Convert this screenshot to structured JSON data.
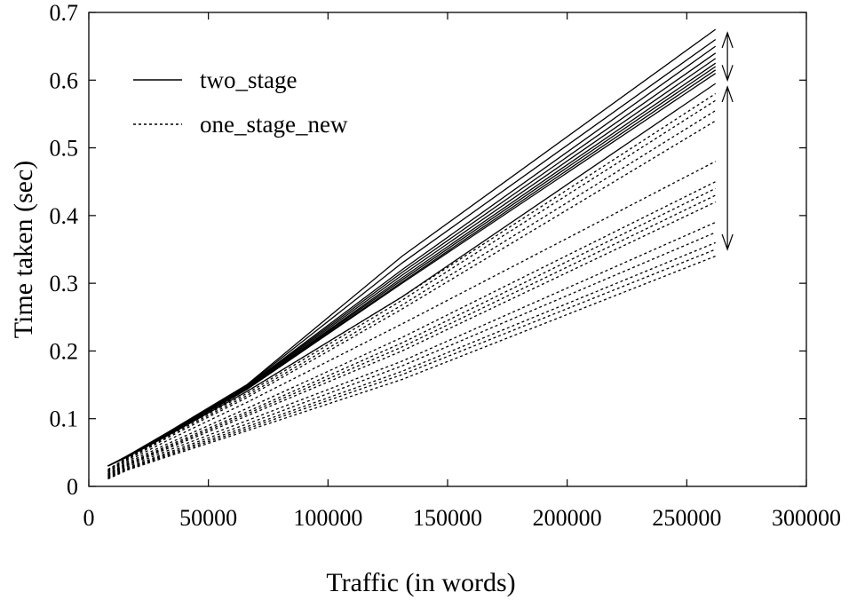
{
  "chart_data": {
    "type": "line",
    "title": "",
    "xlabel": "Traffic (in words)",
    "ylabel": "Time taken (sec)",
    "xlim": [
      0,
      300000
    ],
    "ylim": [
      0,
      0.7
    ],
    "xticks": [
      0,
      50000,
      100000,
      150000,
      200000,
      250000,
      300000
    ],
    "yticks": [
      0,
      0.1,
      0.2,
      0.3,
      0.4,
      0.5,
      0.6,
      0.7
    ],
    "xtick_labels": [
      "0",
      "50000",
      "100000",
      "150000",
      "200000",
      "250000",
      "300000"
    ],
    "ytick_labels": [
      "0",
      "0.1",
      "0.2",
      "0.3",
      "0.4",
      "0.5",
      "0.6",
      "0.7"
    ],
    "grid": false,
    "legend": {
      "position": "top-left",
      "entries": [
        {
          "label": "two_stage",
          "style": "solid"
        },
        {
          "label": "one_stage_new",
          "style": "dotted"
        }
      ]
    },
    "annotations": [
      {
        "type": "double-arrow",
        "x": 267000,
        "y_range": [
          0.6,
          0.67
        ],
        "refers_to": "two_stage"
      },
      {
        "type": "double-arrow",
        "x": 267000,
        "y_range": [
          0.35,
          0.59
        ],
        "refers_to": "one_stage_new"
      }
    ],
    "series_groups": [
      {
        "name": "two_stage",
        "style": "solid",
        "x": [
          8000,
          16000,
          33000,
          66000,
          131000,
          262000
        ],
        "curves": [
          [
            0.03,
            0.045,
            0.08,
            0.15,
            0.34,
            0.675
          ],
          [
            0.03,
            0.045,
            0.079,
            0.149,
            0.33,
            0.66
          ],
          [
            0.03,
            0.044,
            0.078,
            0.148,
            0.32,
            0.65
          ],
          [
            0.03,
            0.044,
            0.078,
            0.147,
            0.316,
            0.64
          ],
          [
            0.03,
            0.044,
            0.077,
            0.146,
            0.312,
            0.632
          ],
          [
            0.03,
            0.044,
            0.077,
            0.145,
            0.308,
            0.625
          ],
          [
            0.03,
            0.044,
            0.077,
            0.145,
            0.305,
            0.62
          ],
          [
            0.03,
            0.044,
            0.076,
            0.144,
            0.302,
            0.615
          ],
          [
            0.03,
            0.044,
            0.076,
            0.143,
            0.3,
            0.61
          ],
          [
            0.03,
            0.043,
            0.075,
            0.14,
            0.28,
            0.595
          ]
        ]
      },
      {
        "name": "one_stage_new",
        "style": "dotted",
        "x": [
          8000,
          16000,
          33000,
          66000,
          131000,
          262000
        ],
        "curves": [
          [
            0.025,
            0.042,
            0.078,
            0.14,
            0.28,
            0.58
          ],
          [
            0.024,
            0.041,
            0.076,
            0.137,
            0.275,
            0.57
          ],
          [
            0.023,
            0.04,
            0.074,
            0.134,
            0.268,
            0.555
          ],
          [
            0.022,
            0.039,
            0.072,
            0.131,
            0.262,
            0.54
          ],
          [
            0.021,
            0.037,
            0.068,
            0.124,
            0.24,
            0.48
          ],
          [
            0.019,
            0.035,
            0.063,
            0.115,
            0.22,
            0.45
          ],
          [
            0.018,
            0.033,
            0.06,
            0.11,
            0.212,
            0.44
          ],
          [
            0.017,
            0.032,
            0.058,
            0.107,
            0.206,
            0.43
          ],
          [
            0.016,
            0.031,
            0.056,
            0.104,
            0.2,
            0.42
          ],
          [
            0.015,
            0.029,
            0.053,
            0.097,
            0.185,
            0.39
          ],
          [
            0.014,
            0.027,
            0.05,
            0.092,
            0.178,
            0.375
          ],
          [
            0.013,
            0.026,
            0.048,
            0.088,
            0.17,
            0.36
          ],
          [
            0.012,
            0.025,
            0.046,
            0.085,
            0.165,
            0.35
          ],
          [
            0.011,
            0.024,
            0.044,
            0.082,
            0.158,
            0.34
          ]
        ]
      }
    ]
  }
}
